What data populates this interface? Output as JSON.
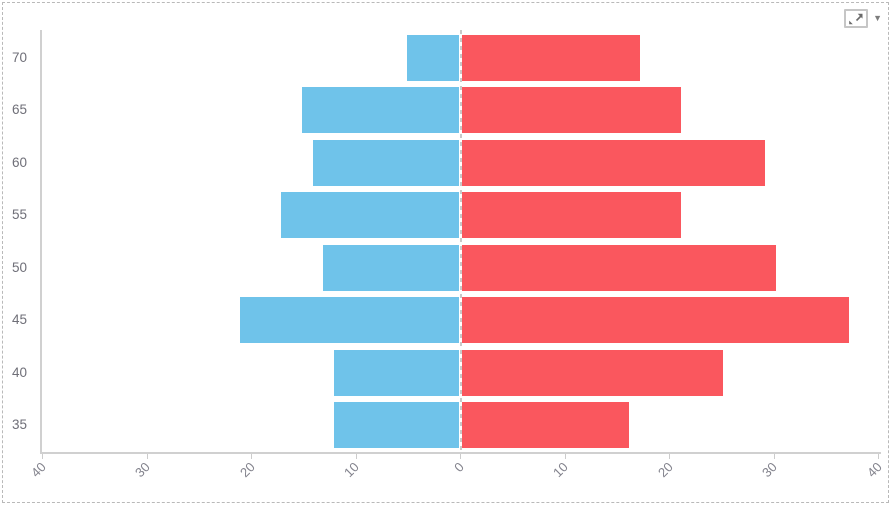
{
  "toolbar": {
    "fullscreen_icon": "expand-diagonal-icon",
    "caret_glyph": "▼"
  },
  "colors": {
    "left_series": "#6fc3ea",
    "right_series": "#fa575e",
    "axis_line": "#d0d0d0",
    "tick_label_color": "#82828c",
    "category_label_color": "#6f6f78",
    "page_border": "#b9b9b9"
  },
  "chart_data": {
    "type": "bar",
    "subtype": "diverging_horizontal_pyramid",
    "title": "",
    "categories": [
      "70",
      "65",
      "60",
      "55",
      "50",
      "45",
      "40",
      "35"
    ],
    "series": [
      {
        "name": "left",
        "color": "#6fc3ea",
        "values": [
          5,
          15,
          14,
          17,
          13,
          21,
          12,
          12
        ]
      },
      {
        "name": "right",
        "color": "#fa575e",
        "values": [
          17,
          21,
          29,
          21,
          30,
          37,
          25,
          16
        ]
      }
    ],
    "x_axis": {
      "tick_labels": [
        "40",
        "30",
        "20",
        "10",
        "0",
        "10",
        "20",
        "30",
        "40"
      ],
      "tick_step": 10,
      "max_abs": 40,
      "label_rotation_deg": -45
    },
    "y_axis": {
      "labels": [
        "70",
        "65",
        "60",
        "55",
        "50",
        "45",
        "40",
        "35"
      ]
    },
    "legend": "none",
    "gridlines": "zero-axis dashed vertical only"
  }
}
